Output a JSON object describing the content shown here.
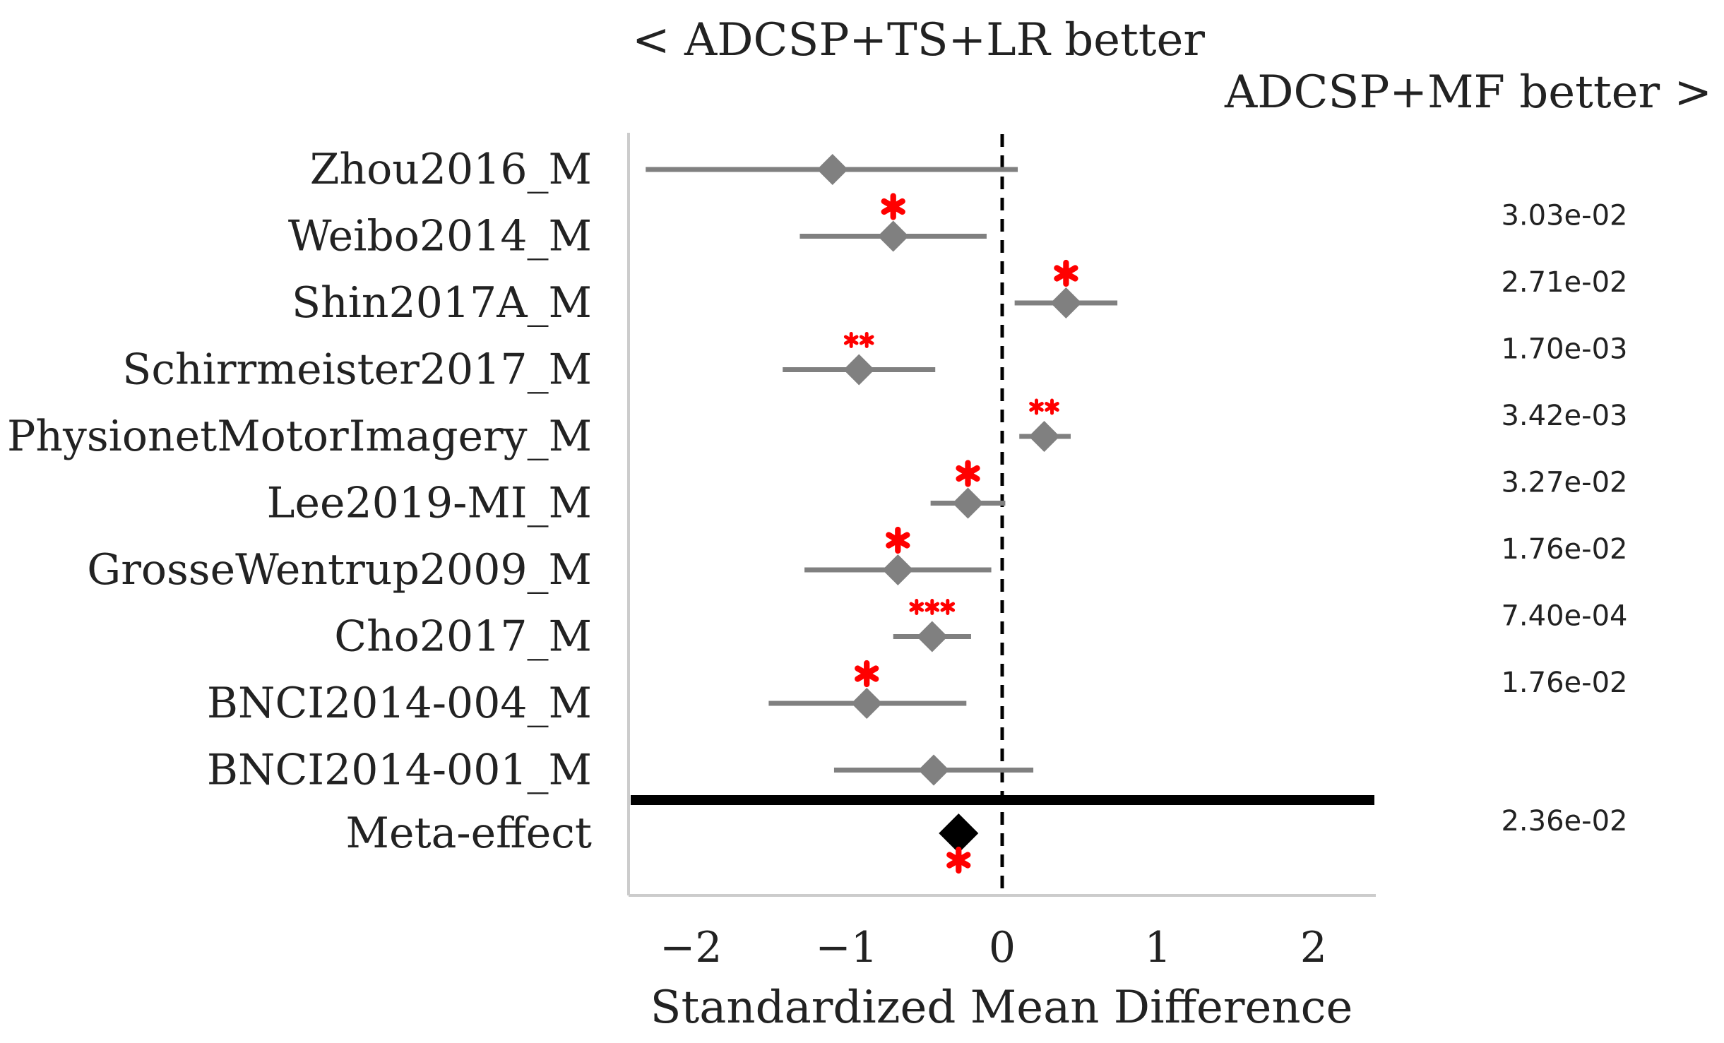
{
  "chart_data": {
    "type": "forest",
    "title_left": "< ADCSP+TS+LR better",
    "title_right": "ADCSP+MF better >",
    "xlabel": "Standardized Mean Difference",
    "xlim": [
      -2.4,
      2.4
    ],
    "xticks": [
      -2,
      -1,
      0,
      1,
      2
    ],
    "xtick_labels": [
      "−2",
      "−1",
      "0",
      "1",
      "2"
    ],
    "reference_line": 0,
    "rows": [
      {
        "label": "Zhou2016_M",
        "effect": -1.09,
        "ci_low": -2.29,
        "ci_high": 0.1,
        "stars": "",
        "pvalue": ""
      },
      {
        "label": "Weibo2014_M",
        "effect": -0.7,
        "ci_low": -1.3,
        "ci_high": -0.1,
        "stars": "*",
        "pvalue": "3.03e-02"
      },
      {
        "label": "Shin2017A_M",
        "effect": 0.41,
        "ci_low": 0.08,
        "ci_high": 0.74,
        "stars": "*",
        "pvalue": "2.71e-02"
      },
      {
        "label": "Schirrmeister2017_M",
        "effect": -0.92,
        "ci_low": -1.41,
        "ci_high": -0.43,
        "stars": "**",
        "pvalue": "1.70e-03"
      },
      {
        "label": "PhysionetMotorImagery_M",
        "effect": 0.27,
        "ci_low": 0.11,
        "ci_high": 0.44,
        "stars": "**",
        "pvalue": "3.42e-03"
      },
      {
        "label": "Lee2019-MI_M",
        "effect": -0.22,
        "ci_low": -0.46,
        "ci_high": 0.02,
        "stars": "*",
        "pvalue": "3.27e-02"
      },
      {
        "label": "GrosseWentrup2009_M",
        "effect": -0.67,
        "ci_low": -1.27,
        "ci_high": -0.07,
        "stars": "*",
        "pvalue": "1.76e-02"
      },
      {
        "label": "Cho2017_M",
        "effect": -0.45,
        "ci_low": -0.7,
        "ci_high": -0.2,
        "stars": "***",
        "pvalue": "7.40e-04"
      },
      {
        "label": "BNCI2014-004_M",
        "effect": -0.87,
        "ci_low": -1.5,
        "ci_high": -0.23,
        "stars": "*",
        "pvalue": "1.76e-02"
      },
      {
        "label": "BNCI2014-001_M",
        "effect": -0.44,
        "ci_low": -1.08,
        "ci_high": 0.2,
        "stars": "",
        "pvalue": ""
      }
    ],
    "meta": {
      "label": "Meta-effect",
      "effect": -0.28,
      "stars": "*",
      "pvalue": "2.36e-02"
    },
    "colors": {
      "study": "#808080",
      "meta": "#000000",
      "stars": "#ff0000",
      "axis": "#cccccc",
      "text": "#222222"
    }
  }
}
